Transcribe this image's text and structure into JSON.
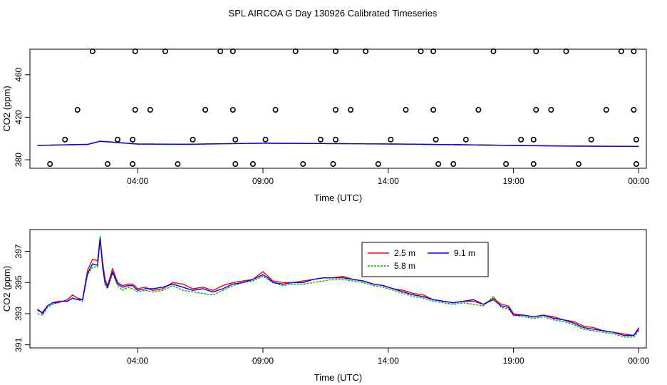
{
  "figure": {
    "title": "SPL AIRCOA G  Day 130926  Calibrated Timeseries"
  },
  "chart_data": [
    {
      "type": "scatter",
      "xlabel": "Time (UTC)",
      "ylabel": "CO2 (ppm)",
      "xlim": [
        -0.3,
        24.3
      ],
      "ylim": [
        372,
        484
      ],
      "x_ticks": [
        4,
        9,
        14,
        19,
        24
      ],
      "x_tick_labels": [
        "04:00",
        "09:00",
        "14:00",
        "19:00",
        "00:00"
      ],
      "y_ticks": [
        380,
        420,
        460
      ],
      "y_tick_labels": [
        "380",
        "420",
        "460"
      ],
      "point_series": [
        {
          "name": "flagged",
          "marker": "open-circle",
          "color": "#000000",
          "points": [
            [
              0.5,
              376
            ],
            [
              1.1,
              399
            ],
            [
              1.6,
              427
            ],
            [
              2.2,
              482
            ],
            [
              2.8,
              376
            ],
            [
              3.2,
              399
            ],
            [
              3.8,
              376
            ],
            [
              3.8,
              399
            ],
            [
              3.9,
              427
            ],
            [
              3.9,
              482
            ],
            [
              4.5,
              427
            ],
            [
              5.1,
              482
            ],
            [
              5.6,
              376
            ],
            [
              6.2,
              399
            ],
            [
              6.7,
              427
            ],
            [
              7.3,
              482
            ],
            [
              7.8,
              482
            ],
            [
              7.8,
              427
            ],
            [
              7.9,
              399
            ],
            [
              7.9,
              376
            ],
            [
              8.6,
              376
            ],
            [
              9.1,
              399
            ],
            [
              9.5,
              427
            ],
            [
              10.3,
              482
            ],
            [
              10.6,
              376
            ],
            [
              11.3,
              399
            ],
            [
              11.8,
              376
            ],
            [
              11.9,
              399
            ],
            [
              11.9,
              427
            ],
            [
              11.9,
              482
            ],
            [
              12.5,
              427
            ],
            [
              13.1,
              482
            ],
            [
              13.6,
              376
            ],
            [
              14.1,
              399
            ],
            [
              14.7,
              427
            ],
            [
              15.3,
              482
            ],
            [
              15.8,
              482
            ],
            [
              15.8,
              427
            ],
            [
              15.9,
              399
            ],
            [
              16.0,
              376
            ],
            [
              16.6,
              376
            ],
            [
              17.1,
              399
            ],
            [
              17.6,
              427
            ],
            [
              18.2,
              482
            ],
            [
              18.7,
              376
            ],
            [
              19.3,
              399
            ],
            [
              19.8,
              376
            ],
            [
              19.8,
              399
            ],
            [
              19.9,
              427
            ],
            [
              19.9,
              482
            ],
            [
              20.5,
              427
            ],
            [
              21.1,
              482
            ],
            [
              21.6,
              376
            ],
            [
              22.1,
              399
            ],
            [
              22.7,
              427
            ],
            [
              23.3,
              482
            ],
            [
              23.8,
              482
            ],
            [
              23.8,
              427
            ],
            [
              23.9,
              399
            ],
            [
              23.9,
              376
            ]
          ]
        }
      ],
      "series": [
        {
          "name": "2.5 m",
          "color": "#ff0000",
          "x": [
            0,
            2,
            2.5,
            4,
            6,
            9,
            12,
            15,
            18,
            21,
            24
          ],
          "values": [
            393.5,
            394.5,
            397.5,
            394.8,
            394.6,
            395.6,
            395.2,
            394.7,
            393.8,
            392.9,
            392.5
          ]
        },
        {
          "name": "5.8 m",
          "color": "#00b000",
          "x": [
            0,
            2,
            2.5,
            4,
            6,
            9,
            12,
            15,
            18,
            21,
            24
          ],
          "values": [
            393.4,
            394.4,
            397.3,
            394.7,
            394.5,
            395.5,
            395.1,
            394.6,
            393.7,
            392.8,
            392.4
          ]
        },
        {
          "name": "9.1 m",
          "color": "#0000ff",
          "x": [
            0,
            2,
            2.5,
            4,
            6,
            9,
            12,
            15,
            18,
            21,
            24
          ],
          "values": [
            393.5,
            394.5,
            397.4,
            394.8,
            394.6,
            395.6,
            395.2,
            394.7,
            393.8,
            392.9,
            392.6
          ]
        }
      ]
    },
    {
      "type": "line",
      "xlabel": "Time (UTC)",
      "ylabel": "CO2 (ppm)",
      "xlim": [
        -0.3,
        24.3
      ],
      "ylim": [
        390.8,
        398.4
      ],
      "x_ticks": [
        4,
        9,
        14,
        19,
        24
      ],
      "x_tick_labels": [
        "04:00",
        "09:00",
        "14:00",
        "19:00",
        "00:00"
      ],
      "y_ticks": [
        391,
        393,
        395,
        397
      ],
      "y_tick_labels": [
        "391",
        "393",
        "395",
        "397"
      ],
      "legend": {
        "position": "top-right-inner",
        "entries": [
          "2.5 m",
          "9.1 m",
          "5.8 m"
        ]
      },
      "series": [
        {
          "name": "2.5 m",
          "color": "#ff0000",
          "x": [
            0,
            0.2,
            0.4,
            0.6,
            0.8,
            1.0,
            1.2,
            1.4,
            1.6,
            1.8,
            2.0,
            2.2,
            2.4,
            2.5,
            2.6,
            2.7,
            2.8,
            3.0,
            3.2,
            3.4,
            3.6,
            3.8,
            4.0,
            4.3,
            4.6,
            5.0,
            5.4,
            5.8,
            6.2,
            6.6,
            7.0,
            7.4,
            7.8,
            8.2,
            8.6,
            9.0,
            9.2,
            9.4,
            9.8,
            10.2,
            10.6,
            11.0,
            11.4,
            11.8,
            12.2,
            12.6,
            13.0,
            13.4,
            13.8,
            14.2,
            14.6,
            15.0,
            15.4,
            15.8,
            16.2,
            16.6,
            17.0,
            17.4,
            17.8,
            18.2,
            18.5,
            18.8,
            19.0,
            19.4,
            19.8,
            20.2,
            20.6,
            21.0,
            21.4,
            21.8,
            22.2,
            22.6,
            23.0,
            23.4,
            23.8,
            24.0
          ],
          "values": [
            393.2,
            393.1,
            393.5,
            393.7,
            393.8,
            393.8,
            393.9,
            394.2,
            394.0,
            393.9,
            395.8,
            396.5,
            396.4,
            397.9,
            396.3,
            395.2,
            394.8,
            395.9,
            395.0,
            394.8,
            394.9,
            394.9,
            394.6,
            394.7,
            394.5,
            394.6,
            395.0,
            394.9,
            394.6,
            394.7,
            394.5,
            394.8,
            395.0,
            395.1,
            395.2,
            395.7,
            395.4,
            395.1,
            395.0,
            395.0,
            395.1,
            395.2,
            395.3,
            395.3,
            395.4,
            395.2,
            395.1,
            394.9,
            394.8,
            394.6,
            394.5,
            394.3,
            394.2,
            393.9,
            393.8,
            393.7,
            393.8,
            393.8,
            393.6,
            394.0,
            393.6,
            393.5,
            393.0,
            392.9,
            392.8,
            392.9,
            392.8,
            392.6,
            392.5,
            392.2,
            392.1,
            391.9,
            391.8,
            391.7,
            391.6,
            392.0
          ]
        },
        {
          "name": "5.8 m",
          "color": "#00b000",
          "x": [
            0,
            0.2,
            0.4,
            0.6,
            0.8,
            1.0,
            1.2,
            1.4,
            1.6,
            1.8,
            2.0,
            2.2,
            2.4,
            2.5,
            2.6,
            2.7,
            2.8,
            3.0,
            3.2,
            3.4,
            3.6,
            3.8,
            4.0,
            4.3,
            4.6,
            5.0,
            5.4,
            5.8,
            6.2,
            6.6,
            7.0,
            7.4,
            7.8,
            8.2,
            8.6,
            9.0,
            9.2,
            9.4,
            9.8,
            10.2,
            10.6,
            11.0,
            11.4,
            11.8,
            12.2,
            12.6,
            13.0,
            13.4,
            13.8,
            14.2,
            14.6,
            15.0,
            15.4,
            15.8,
            16.2,
            16.6,
            17.0,
            17.4,
            17.8,
            18.2,
            18.5,
            18.8,
            19.0,
            19.4,
            19.8,
            20.2,
            20.6,
            21.0,
            21.4,
            21.8,
            22.2,
            22.6,
            23.0,
            23.4,
            23.8,
            24.0
          ],
          "values": [
            393.0,
            392.9,
            393.4,
            393.6,
            393.7,
            393.8,
            393.8,
            394.0,
            393.9,
            393.8,
            395.5,
            396.0,
            396.0,
            398.0,
            396.0,
            394.8,
            394.6,
            395.6,
            394.8,
            394.5,
            394.7,
            394.6,
            394.4,
            394.5,
            394.4,
            394.5,
            394.8,
            394.5,
            394.4,
            394.3,
            394.2,
            394.5,
            394.8,
            395.0,
            395.1,
            395.4,
            395.2,
            395.0,
            394.8,
            394.9,
            394.9,
            395.0,
            395.1,
            395.2,
            395.2,
            395.1,
            395.0,
            394.8,
            394.7,
            394.5,
            394.3,
            394.1,
            394.0,
            393.8,
            393.7,
            393.6,
            393.7,
            393.6,
            393.5,
            394.1,
            393.4,
            393.3,
            392.9,
            392.8,
            392.7,
            392.8,
            392.6,
            392.5,
            392.3,
            392.0,
            391.9,
            391.8,
            391.7,
            391.5,
            391.5,
            391.9
          ]
        },
        {
          "name": "9.1 m",
          "color": "#0000ff",
          "x": [
            0,
            0.2,
            0.4,
            0.6,
            0.8,
            1.0,
            1.2,
            1.4,
            1.6,
            1.8,
            2.0,
            2.2,
            2.4,
            2.5,
            2.6,
            2.7,
            2.8,
            3.0,
            3.2,
            3.4,
            3.6,
            3.8,
            4.0,
            4.3,
            4.6,
            5.0,
            5.4,
            5.8,
            6.2,
            6.6,
            7.0,
            7.4,
            7.8,
            8.2,
            8.6,
            9.0,
            9.2,
            9.4,
            9.8,
            10.2,
            10.6,
            11.0,
            11.4,
            11.8,
            12.2,
            12.6,
            13.0,
            13.4,
            13.8,
            14.2,
            14.6,
            15.0,
            15.4,
            15.8,
            16.2,
            16.6,
            17.0,
            17.4,
            17.8,
            18.2,
            18.5,
            18.8,
            19.0,
            19.4,
            19.8,
            20.2,
            20.6,
            21.0,
            21.4,
            21.8,
            22.2,
            22.6,
            23.0,
            23.4,
            23.8,
            24.0
          ],
          "values": [
            393.3,
            393.0,
            393.5,
            393.7,
            393.7,
            393.8,
            393.8,
            394.0,
            393.9,
            393.9,
            395.6,
            396.2,
            396.1,
            397.8,
            396.0,
            395.0,
            394.7,
            395.7,
            394.9,
            394.7,
            394.8,
            394.8,
            394.5,
            394.6,
            394.6,
            394.7,
            394.9,
            394.7,
            394.5,
            394.6,
            394.4,
            394.6,
            394.9,
            395.0,
            395.2,
            395.5,
            395.3,
            395.0,
            394.9,
            395.0,
            395.0,
            395.2,
            395.3,
            395.3,
            395.3,
            395.2,
            395.1,
            394.9,
            394.8,
            394.6,
            394.4,
            394.2,
            394.1,
            393.9,
            393.8,
            393.7,
            393.8,
            393.9,
            393.6,
            393.9,
            393.5,
            393.4,
            392.9,
            392.9,
            392.8,
            392.9,
            392.7,
            392.6,
            392.4,
            392.1,
            392.0,
            391.9,
            391.8,
            391.6,
            391.6,
            392.1
          ]
        }
      ]
    }
  ]
}
